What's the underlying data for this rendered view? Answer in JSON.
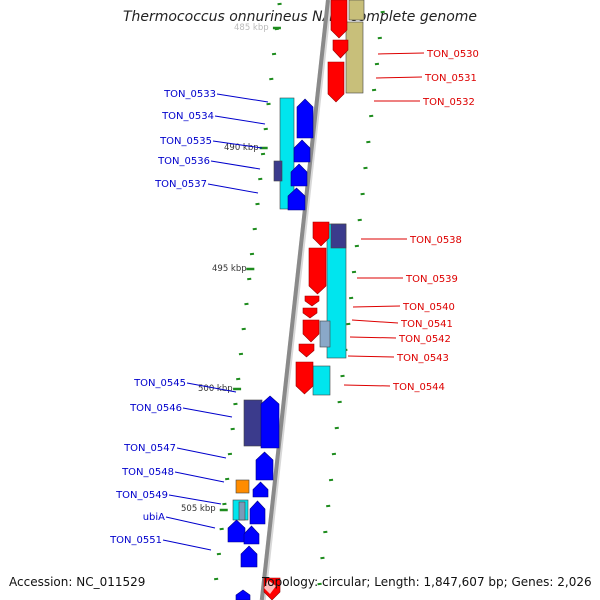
{
  "title": "Thermococcus onnurineus NA1, complete genome",
  "accession": "Accession: NC_011529",
  "stats": "Topology: circular; Length: 1,847,607 bp; Genes: 2,026",
  "colors": {
    "backbone": "#8a8a8a",
    "forward_gene": "#ff0000",
    "reverse_gene": "#0000ff",
    "cyan_feature": "#00e5ee",
    "olive_feature": "#c8bf7a",
    "navy_feature": "#3b3b8c",
    "orange_feature": "#ff8c00",
    "tick": "#1e8c1e",
    "reverse_label": "#0000cc",
    "forward_label": "#dd0000"
  },
  "coordinate_labels": [
    "485 kbp",
    "490 kbp",
    "495 kbp",
    "500 kbp",
    "505 kbp"
  ],
  "forward_labels": [
    "TON_0530",
    "TON_0531",
    "TON_0532",
    "TON_0538",
    "TON_0539",
    "TON_0540",
    "TON_0541",
    "TON_0542",
    "TON_0543",
    "TON_0544"
  ],
  "reverse_labels": [
    "TON_0533",
    "TON_0534",
    "TON_0535",
    "TON_0536",
    "TON_0537",
    "TON_0545",
    "TON_0546",
    "TON_0547",
    "TON_0548",
    "TON_0549",
    "ubiA",
    "TON_0551"
  ]
}
